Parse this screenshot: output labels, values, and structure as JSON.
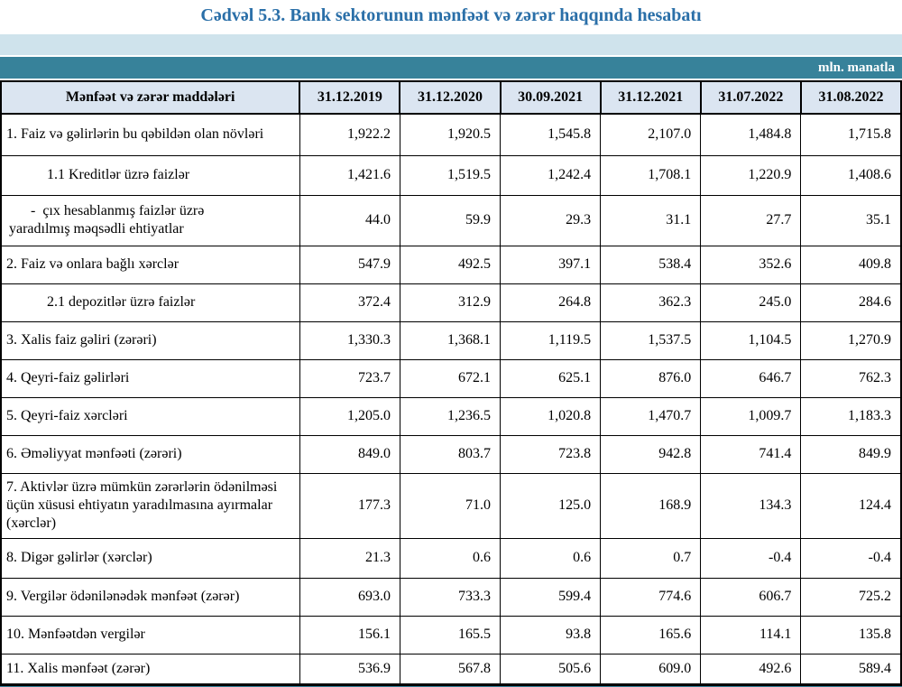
{
  "title": "Cədvəl 5.3. Bank sektorunun mənfəət və zərər haqqında hesabatı",
  "unit_label": "mln. manatla",
  "colors": {
    "title_blue": "#2A6FA8",
    "band_light": "#CFE3EC",
    "accent_teal": "#37829A",
    "header_bg": "#DBE5F1",
    "border": "#000000"
  },
  "chart_data": {
    "type": "table",
    "title": "Cədvəl 5.3. Bank sektorunun mənfəət və zərər haqqında hesabatı",
    "unit": "mln. manatla",
    "columns": [
      "Mənfəət və zərər maddələri",
      "31.12.2019",
      "31.12.2020",
      "30.09.2021",
      "31.12.2021",
      "31.07.2022",
      "31.08.2022"
    ],
    "rows": [
      {
        "label": "1. Faiz və gəlirlərin bu qəbildən olan növləri",
        "indent": 0,
        "values": [
          "1,922.2",
          "1,920.5",
          "1,545.8",
          "2,107.0",
          "1,484.8",
          "1,715.8"
        ]
      },
      {
        "label": "1.1 Kreditlər üzrə faizlər",
        "indent": 1,
        "values": [
          "1,421.6",
          "1,519.5",
          "1,242.4",
          "1,708.1",
          "1,220.9",
          "1,408.6"
        ]
      },
      {
        "label": "      -  çıx hesablanmış faizlər üzrə\nyaradılmış məqsədli ehtiyatlar",
        "indent": 0,
        "multiline": true,
        "values": [
          "44.0",
          "59.9",
          "29.3",
          "31.1",
          "27.7",
          "35.1"
        ]
      },
      {
        "label": "2. Faiz və onlara bağlı xərclər",
        "indent": 0,
        "values": [
          "547.9",
          "492.5",
          "397.1",
          "538.4",
          "352.6",
          "409.8"
        ]
      },
      {
        "label": "2.1 depozitlər üzrə faizlər",
        "indent": 1,
        "values": [
          "372.4",
          "312.9",
          "264.8",
          "362.3",
          "245.0",
          "284.6"
        ]
      },
      {
        "label": "3. Xalis faiz gəliri (zərəri)",
        "indent": 0,
        "values": [
          "1,330.3",
          "1,368.1",
          "1,119.5",
          "1,537.5",
          "1,104.5",
          "1,270.9"
        ]
      },
      {
        "label": "4. Qeyri-faiz gəlirləri",
        "indent": 0,
        "values": [
          "723.7",
          "672.1",
          "625.1",
          "876.0",
          "646.7",
          "762.3"
        ]
      },
      {
        "label": "5. Qeyri-faiz xərcləri",
        "indent": 0,
        "values": [
          "1,205.0",
          "1,236.5",
          "1,020.8",
          "1,470.7",
          "1,009.7",
          "1,183.3"
        ]
      },
      {
        "label": "6. Əməliyyat mənfəəti (zərəri)",
        "indent": 0,
        "values": [
          "849.0",
          "803.7",
          "723.8",
          "942.8",
          "741.4",
          "849.9"
        ]
      },
      {
        "label": "7. Aktivlər üzrə mümkün zərərlərin ödənilməsi üçün xüsusi ehtiyatın yaradılmasına ayırmalar (xərclər)",
        "indent": 0,
        "values": [
          "177.3",
          "71.0",
          "125.0",
          "168.9",
          "134.3",
          "124.4"
        ]
      },
      {
        "label": "8. Digər gəlirlər (xərclər)",
        "indent": 0,
        "values": [
          "21.3",
          "0.6",
          "0.6",
          "0.7",
          "-0.4",
          "-0.4"
        ]
      },
      {
        "label": "9. Vergilər ödənilənədək mənfəət (zərər)",
        "indent": 0,
        "values": [
          "693.0",
          "733.3",
          "599.4",
          "774.6",
          "606.7",
          "725.2"
        ]
      },
      {
        "label": "10. Mənfəətdən vergilər",
        "indent": 0,
        "values": [
          "156.1",
          "165.5",
          "93.8",
          "165.6",
          "114.1",
          "135.8"
        ]
      },
      {
        "label": "11. Xalis mənfəət (zərər)",
        "indent": 0,
        "values": [
          "536.9",
          "567.8",
          "505.6",
          "609.0",
          "492.6",
          "589.4"
        ]
      }
    ]
  }
}
